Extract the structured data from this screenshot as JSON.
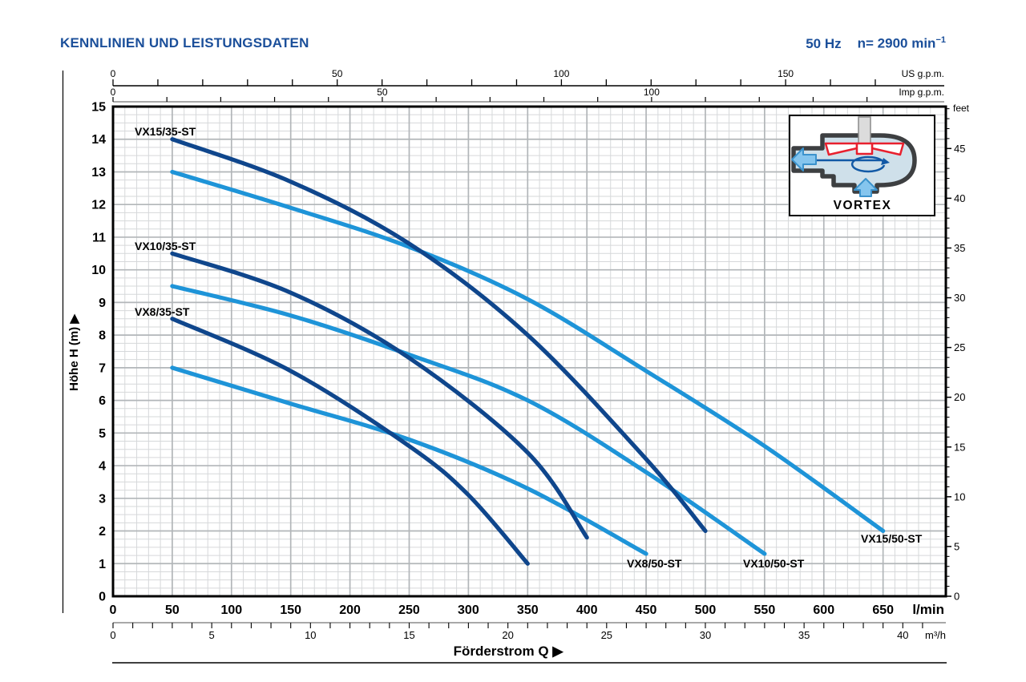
{
  "header": {
    "title": "KENNLINIEN UND LEISTUNGSDATEN",
    "frequency": "50 Hz",
    "speed_label": "n= 2900 min",
    "speed_exponent": "−1"
  },
  "inset": {
    "caption": "VORTEX"
  },
  "colors": {
    "title_blue": "#1b4f9a",
    "curve_dark": "#0f468c",
    "curve_light": "#1e94d8",
    "grid_minor": "#d6d8da",
    "grid_major": "#b2b6b9",
    "axis_black": "#000000",
    "axis_gray": "#8c8c8c"
  },
  "chart_data": {
    "type": "line",
    "title": "KENNLINIEN UND LEISTUNGSDATEN",
    "xlabel": "Förderstrom Q",
    "ylabel": "Höhe H (m)",
    "x_range_lmin": [
      0,
      703
    ],
    "y_range_m": [
      0,
      15
    ],
    "grid": "minor 10 l/min × 0.25 m, major 50 l/min × 1 m",
    "legend_position": "labels on curves",
    "axes": {
      "lmin": {
        "unit": "l/min",
        "tick_step": 50,
        "labels": [
          0,
          50,
          100,
          150,
          200,
          250,
          300,
          350,
          400,
          450,
          500,
          550,
          600,
          650
        ]
      },
      "m3h": {
        "unit": "m³/h",
        "lmin_per_unit": 16.6667,
        "tick_step": 1,
        "max_tick": 41,
        "labels": [
          0,
          5,
          10,
          15,
          20,
          25,
          30,
          35,
          40
        ]
      },
      "usgpm": {
        "unit": "US g.p.m.",
        "lmin_per_unit": 3.785,
        "tick_step": 10,
        "max_tick": 170,
        "labels": [
          0,
          50,
          100,
          150
        ]
      },
      "impgpm": {
        "unit": "Imp g.p.m.",
        "lmin_per_unit": 4.546,
        "tick_step": 10,
        "max_tick": 140,
        "labels": [
          0,
          50,
          100
        ]
      },
      "meters": {
        "unit": "m",
        "tick_step": 1,
        "labels": [
          0,
          1,
          2,
          3,
          4,
          5,
          6,
          7,
          8,
          9,
          10,
          11,
          12,
          13,
          14,
          15
        ]
      },
      "feet": {
        "unit": "feet",
        "m_per_unit": 0.3048,
        "tick_step": 1,
        "max_tick": 49,
        "label_step": 5,
        "labels": [
          0,
          5,
          10,
          15,
          20,
          25,
          30,
          35,
          40,
          45
        ]
      }
    },
    "series": [
      {
        "name": "VX15/35-ST",
        "color": "dark",
        "points": [
          [
            50,
            14.0
          ],
          [
            150,
            12.7
          ],
          [
            250,
            10.8
          ],
          [
            350,
            8.0
          ],
          [
            450,
            4.2
          ],
          [
            500,
            2.0
          ]
        ],
        "label_at": [
          168,
          169
        ],
        "label_anchor": "start"
      },
      {
        "name": "VX15/50-ST",
        "color": "light",
        "points": [
          [
            50,
            13.0
          ],
          [
            150,
            11.9
          ],
          [
            250,
            10.7
          ],
          [
            350,
            9.1
          ],
          [
            450,
            6.9
          ],
          [
            550,
            4.6
          ],
          [
            650,
            2.0
          ]
        ],
        "label_at": [
          1074,
          677
        ],
        "label_anchor": "start"
      },
      {
        "name": "VX10/35-ST",
        "color": "dark",
        "points": [
          [
            50,
            10.5
          ],
          [
            150,
            9.3
          ],
          [
            250,
            7.3
          ],
          [
            350,
            4.4
          ],
          [
            400,
            1.8
          ]
        ],
        "label_at": [
          168,
          312
        ],
        "label_anchor": "start"
      },
      {
        "name": "VX10/50-ST",
        "color": "light",
        "points": [
          [
            50,
            9.5
          ],
          [
            150,
            8.6
          ],
          [
            250,
            7.4
          ],
          [
            350,
            6.0
          ],
          [
            450,
            3.8
          ],
          [
            550,
            1.3
          ]
        ],
        "label_at": [
          927,
          708
        ],
        "label_anchor": "start"
      },
      {
        "name": "VX8/35-ST",
        "color": "dark",
        "points": [
          [
            50,
            8.5
          ],
          [
            150,
            6.9
          ],
          [
            250,
            4.6
          ],
          [
            300,
            3.1
          ],
          [
            350,
            1.0
          ]
        ],
        "label_at": [
          168,
          394
        ],
        "label_anchor": "start"
      },
      {
        "name": "VX8/50-ST",
        "color": "light",
        "points": [
          [
            50,
            7.0
          ],
          [
            150,
            5.9
          ],
          [
            250,
            4.8
          ],
          [
            350,
            3.3
          ],
          [
            450,
            1.3
          ]
        ],
        "label_at": [
          782,
          708
        ],
        "label_anchor": "start"
      }
    ]
  }
}
